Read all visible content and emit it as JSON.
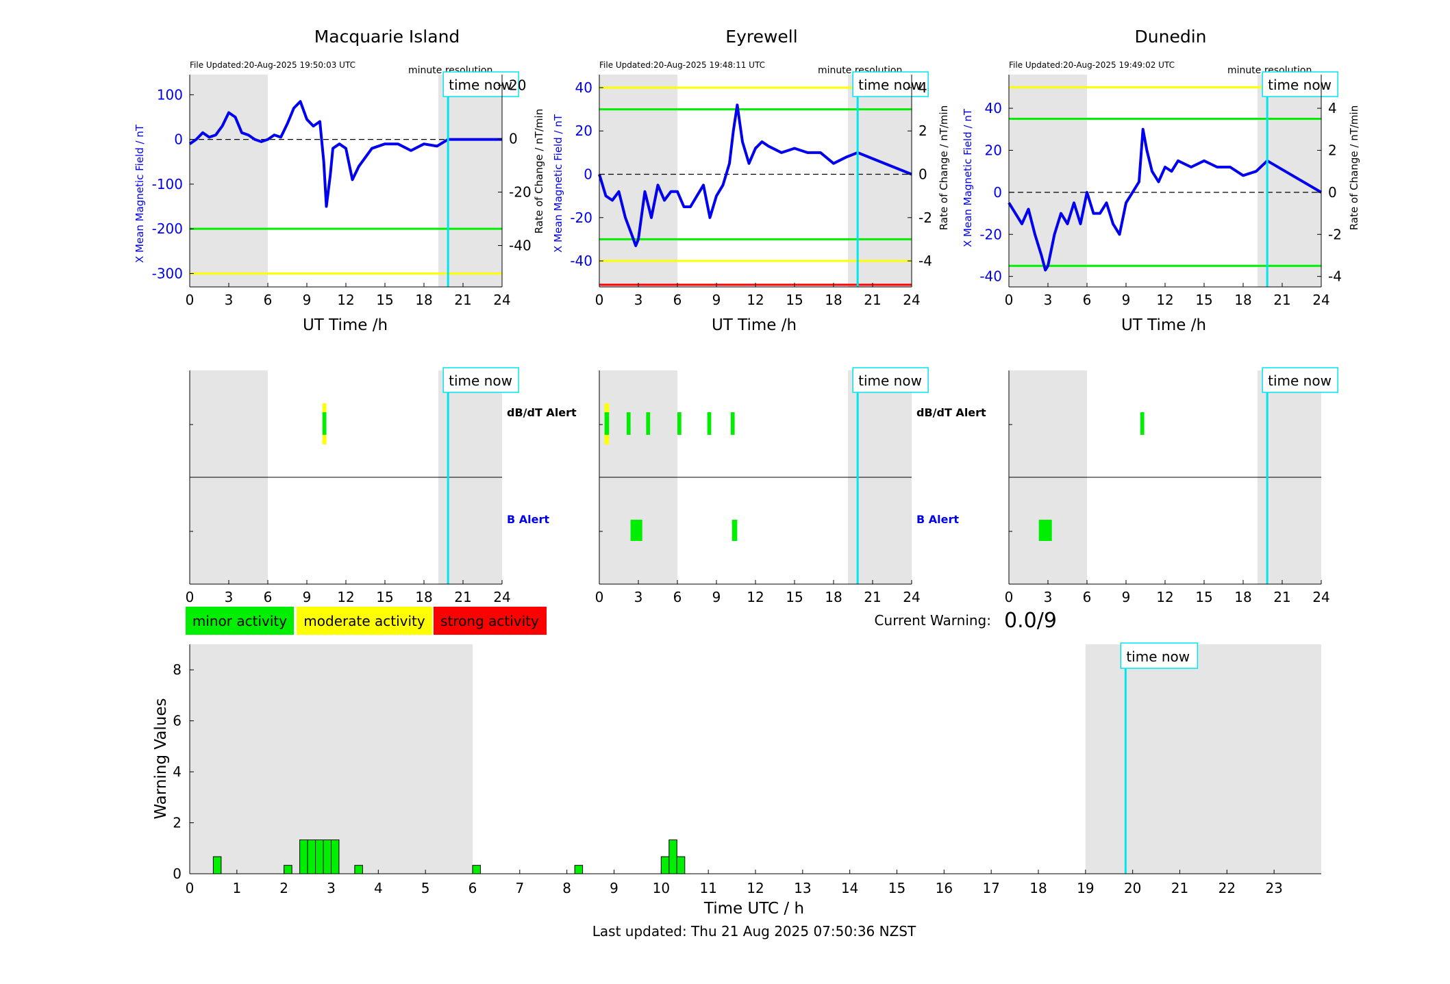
{
  "colors": {
    "blue": "#0000ee",
    "green": "#00ee00",
    "yellow": "#ffff00",
    "red": "#ff0000",
    "cyan": "#00e5ee",
    "shade": "#e5e5e5"
  },
  "common": {
    "xlabel": "UT Time /h",
    "resolution": "minute resolution",
    "time_now": "time now",
    "x_ticks": [
      "0",
      "3",
      "6",
      "9",
      "12",
      "15",
      "18",
      "21",
      "24"
    ]
  },
  "chart_data": [
    {
      "type": "line",
      "title": "Macquarie Island",
      "file_updated": "File Updated:20-Aug-2025 19:50:03 UTC",
      "ylabel_left": "X Mean Magnetic Field / nT",
      "ylabel_right": "",
      "xlim": [
        0,
        24
      ],
      "ylim_left": [
        -330,
        145
      ],
      "ylim_right": [
        -55.5,
        24.0
      ],
      "left_ticks": [
        100,
        0,
        -100,
        -200,
        -300
      ],
      "right_ticks": [
        20,
        0,
        -20,
        -40
      ],
      "threshold_lines": [
        {
          "value": -200,
          "color": "green"
        },
        {
          "value": -300,
          "color": "yellow"
        }
      ],
      "night_shading": [
        [
          0,
          6
        ],
        [
          19.1,
          24
        ]
      ],
      "time_now": 19.85,
      "series": [
        {
          "axis": "left",
          "color": "blue",
          "x": [
            0,
            0.5,
            1,
            1.5,
            2,
            2.5,
            3,
            3.5,
            4,
            4.5,
            5,
            5.5,
            6,
            6.5,
            7,
            7.5,
            8,
            8.5,
            9,
            9.5,
            10,
            10.3,
            10.5,
            10.8,
            11,
            11.5,
            12,
            12.5,
            13,
            14,
            15,
            16,
            17,
            18,
            19,
            19.85,
            24
          ],
          "y": [
            -10,
            0,
            15,
            5,
            10,
            30,
            60,
            50,
            15,
            10,
            0,
            -5,
            0,
            10,
            5,
            35,
            70,
            85,
            45,
            30,
            40,
            -50,
            -150,
            -80,
            -20,
            -10,
            -20,
            -90,
            -60,
            -20,
            -10,
            -10,
            -25,
            -10,
            -15,
            0,
            0
          ]
        }
      ],
      "alerts": {
        "dbdt": [
          {
            "start": 10.2,
            "end": 10.5,
            "level": "moderate"
          }
        ],
        "b": []
      }
    },
    {
      "type": "line",
      "title": "Eyrewell",
      "file_updated": "File Updated:20-Aug-2025 19:48:11 UTC",
      "ylabel_left": "X Mean Magnetic Field / nT",
      "ylabel_right": "Rate of Change / nT/min",
      "xlim": [
        0,
        24
      ],
      "ylim_left": [
        -52,
        46
      ],
      "ylim_right": [
        -5.2,
        4.6
      ],
      "left_ticks": [
        40,
        20,
        0,
        -20,
        -40
      ],
      "right_ticks": [
        4,
        2,
        0,
        -2,
        -4
      ],
      "threshold_lines": [
        {
          "value": 40,
          "color": "yellow"
        },
        {
          "value": 30,
          "color": "green"
        },
        {
          "value": -30,
          "color": "green"
        },
        {
          "value": -40,
          "color": "yellow"
        },
        {
          "value": -51,
          "color": "red"
        }
      ],
      "night_shading": [
        [
          0,
          6
        ],
        [
          19.1,
          24
        ]
      ],
      "time_now": 19.85,
      "series": [
        {
          "axis": "left",
          "color": "blue",
          "x": [
            0,
            0.5,
            1,
            1.5,
            2,
            2.5,
            2.8,
            3,
            3.5,
            4,
            4.5,
            5,
            5.5,
            6,
            6.5,
            7,
            7.5,
            8,
            8.5,
            9,
            9.5,
            10,
            10.3,
            10.6,
            11,
            11.5,
            12,
            12.5,
            13,
            14,
            15,
            16,
            17,
            18,
            19,
            19.85,
            24
          ],
          "y": [
            0,
            -10,
            -12,
            -8,
            -20,
            -28,
            -33,
            -30,
            -8,
            -20,
            -5,
            -12,
            -8,
            -8,
            -15,
            -15,
            -10,
            -5,
            -20,
            -10,
            -5,
            5,
            20,
            32,
            15,
            5,
            12,
            15,
            13,
            10,
            12,
            10,
            10,
            5,
            8,
            10,
            0
          ]
        }
      ],
      "alerts": {
        "dbdt": [
          {
            "start": 0.4,
            "end": 0.75,
            "level": "moderate"
          },
          {
            "start": 2.1,
            "end": 2.4,
            "level": "minor"
          },
          {
            "start": 3.6,
            "end": 3.9,
            "level": "minor"
          },
          {
            "start": 6.0,
            "end": 6.3,
            "level": "minor"
          },
          {
            "start": 8.3,
            "end": 8.6,
            "level": "minor"
          },
          {
            "start": 10.1,
            "end": 10.4,
            "level": "minor"
          }
        ],
        "b": [
          {
            "start": 2.4,
            "end": 3.3,
            "level": "minor"
          },
          {
            "start": 10.2,
            "end": 10.6,
            "level": "minor"
          }
        ]
      }
    },
    {
      "type": "line",
      "title": "Dunedin",
      "file_updated": "File Updated:20-Aug-2025 19:49:02 UTC",
      "ylabel_left": "X Mean Magnetic Field / nT",
      "ylabel_right": "Rate of Change / nT/min",
      "xlim": [
        0,
        24
      ],
      "ylim_left": [
        -45,
        56
      ],
      "ylim_right": [
        -4.5,
        5.6
      ],
      "left_ticks": [
        40,
        20,
        0,
        -20,
        -40
      ],
      "right_ticks": [
        4,
        2,
        0,
        -2,
        -4
      ],
      "threshold_lines": [
        {
          "value": 50,
          "color": "yellow"
        },
        {
          "value": 35,
          "color": "green"
        },
        {
          "value": -35,
          "color": "green"
        }
      ],
      "night_shading": [
        [
          0,
          6
        ],
        [
          19.1,
          24
        ]
      ],
      "time_now": 19.85,
      "series": [
        {
          "axis": "left",
          "color": "blue",
          "x": [
            0,
            0.5,
            1,
            1.5,
            2,
            2.5,
            2.8,
            3,
            3.5,
            4,
            4.5,
            5,
            5.5,
            6,
            6.5,
            7,
            7.5,
            8,
            8.5,
            9,
            9.5,
            10,
            10.3,
            10.6,
            11,
            11.5,
            12,
            12.5,
            13,
            14,
            15,
            16,
            17,
            18,
            19,
            19.85,
            24
          ],
          "y": [
            -5,
            -10,
            -15,
            -8,
            -20,
            -30,
            -37,
            -35,
            -20,
            -10,
            -15,
            -5,
            -15,
            0,
            -10,
            -10,
            -5,
            -15,
            -20,
            -5,
            0,
            5,
            30,
            20,
            10,
            5,
            12,
            10,
            15,
            12,
            15,
            12,
            12,
            8,
            10,
            15,
            0
          ]
        }
      ],
      "alerts": {
        "dbdt": [
          {
            "start": 10.1,
            "end": 10.4,
            "level": "minor"
          }
        ],
        "b": [
          {
            "start": 2.3,
            "end": 3.3,
            "level": "minor"
          }
        ]
      }
    },
    {
      "type": "bar",
      "title": "",
      "xlabel": "Time UTC / h",
      "ylabel": "Warning Values",
      "xlim": [
        0,
        24
      ],
      "ylim": [
        0,
        9
      ],
      "x_ticks": [
        0,
        1,
        2,
        3,
        4,
        5,
        6,
        7,
        8,
        9,
        10,
        11,
        12,
        13,
        14,
        15,
        16,
        17,
        18,
        19,
        20,
        21,
        22,
        23
      ],
      "y_ticks": [
        0,
        2,
        4,
        6,
        8
      ],
      "night_shading": [
        [
          0,
          6
        ],
        [
          19,
          24
        ]
      ],
      "time_now": 19.85,
      "bar_width": 0.167,
      "x": [
        0.583,
        2.083,
        2.417,
        2.583,
        2.75,
        2.917,
        3.083,
        3.583,
        6.083,
        8.25,
        10.083,
        10.25,
        10.417
      ],
      "values": [
        0.67,
        0.33,
        1.33,
        1.33,
        1.33,
        1.33,
        1.33,
        0.33,
        0.33,
        0.33,
        0.67,
        1.33,
        0.67
      ]
    }
  ],
  "alert_panel": {
    "dbdt_label": "dB/dT Alert",
    "b_label": "B Alert"
  },
  "legend": {
    "minor": "minor activity",
    "moderate": "moderate activity",
    "strong": "strong activity"
  },
  "current_warning": {
    "label": "Current Warning:",
    "value": "0.0/9"
  },
  "footer": {
    "last_updated": "Last updated: Thu 21 Aug 2025 07:50:36 NZST"
  }
}
